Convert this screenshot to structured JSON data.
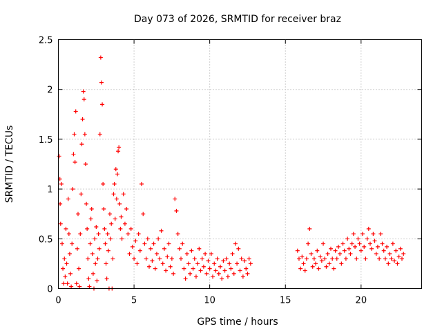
{
  "chart_data": {
    "type": "scatter",
    "title": "Day 073 of 2026, SRMTID for receiver braz",
    "xlabel": "GPS time / hours",
    "ylabel": "SRMTID / TECUs",
    "xlim": [
      0,
      24
    ],
    "ylim": [
      0,
      2.5
    ],
    "xticks": [
      0,
      5,
      10,
      15,
      20
    ],
    "xtick_labels": [
      "0",
      "5",
      "10",
      "15",
      "20"
    ],
    "yticks": [
      0,
      0.5,
      1,
      1.5,
      2,
      2.5
    ],
    "ytick_labels": [
      "0",
      "0.5",
      "1",
      "1.5",
      "2",
      "2.5"
    ],
    "grid": true,
    "marker": "+",
    "series": [
      {
        "name": "SRMTID",
        "color": "#ff0000",
        "points": [
          [
            0.05,
            1.33
          ],
          [
            0.1,
            1.1
          ],
          [
            0.12,
            0.85
          ],
          [
            0.15,
            0.65
          ],
          [
            0.2,
            1.05
          ],
          [
            0.25,
            0.45
          ],
          [
            0.3,
            0.2
          ],
          [
            0.35,
            0.05
          ],
          [
            0.4,
            0.3
          ],
          [
            0.45,
            0.12
          ],
          [
            0.5,
            0.6
          ],
          [
            0.55,
            0.25
          ],
          [
            0.6,
            0.05
          ],
          [
            0.65,
            0.9
          ],
          [
            0.7,
            0.55
          ],
          [
            0.75,
            0.35
          ],
          [
            0.8,
            0.15
          ],
          [
            0.85,
            0.02
          ],
          [
            0.9,
            0.45
          ],
          [
            0.95,
            1.0
          ],
          [
            1.0,
            1.35
          ],
          [
            1.05,
            1.55
          ],
          [
            1.1,
            1.27
          ],
          [
            1.15,
            1.78
          ],
          [
            1.2,
            0.05
          ],
          [
            1.25,
            0.4
          ],
          [
            1.3,
            0.75
          ],
          [
            1.35,
            0.2
          ],
          [
            1.4,
            0.02
          ],
          [
            1.45,
            0.55
          ],
          [
            1.5,
            0.95
          ],
          [
            1.55,
            1.45
          ],
          [
            1.6,
            1.7
          ],
          [
            1.65,
            1.98
          ],
          [
            1.7,
            1.9
          ],
          [
            1.75,
            1.55
          ],
          [
            1.8,
            1.25
          ],
          [
            1.85,
            0.85
          ],
          [
            1.9,
            0.6
          ],
          [
            1.95,
            0.3
          ],
          [
            2.0,
            0.1
          ],
          [
            2.05,
            0.02
          ],
          [
            2.1,
            0.45
          ],
          [
            2.15,
            0.7
          ],
          [
            2.2,
            0.8
          ],
          [
            2.25,
            0.35
          ],
          [
            2.3,
            0.15
          ],
          [
            2.35,
            0.0
          ],
          [
            2.4,
            0.5
          ],
          [
            2.45,
            0.25
          ],
          [
            2.5,
            0.62
          ],
          [
            2.55,
            0.08
          ],
          [
            2.6,
            0.3
          ],
          [
            2.65,
            0.55
          ],
          [
            2.7,
            0.4
          ],
          [
            2.75,
            1.55
          ],
          [
            2.8,
            2.32
          ],
          [
            2.85,
            2.07
          ],
          [
            2.9,
            1.85
          ],
          [
            2.95,
            1.05
          ],
          [
            3.0,
            0.8
          ],
          [
            3.05,
            0.6
          ],
          [
            3.1,
            0.45
          ],
          [
            3.15,
            0.25
          ],
          [
            3.2,
            0.1
          ],
          [
            3.25,
            0.55
          ],
          [
            3.3,
            0.38
          ],
          [
            3.35,
            0.0
          ],
          [
            3.4,
            0.75
          ],
          [
            3.45,
            0.5
          ],
          [
            3.5,
            0.65
          ],
          [
            3.55,
            0.0
          ],
          [
            3.6,
            0.3
          ],
          [
            3.65,
            0.95
          ],
          [
            3.7,
            1.05
          ],
          [
            3.75,
            0.7
          ],
          [
            3.8,
            1.2
          ],
          [
            3.85,
            0.9
          ],
          [
            3.9,
            1.15
          ],
          [
            3.95,
            1.38
          ],
          [
            4.0,
            1.42
          ],
          [
            4.05,
            0.85
          ],
          [
            4.1,
            0.6
          ],
          [
            4.15,
            0.72
          ],
          [
            4.2,
            0.5
          ],
          [
            4.3,
            0.95
          ],
          [
            4.4,
            0.65
          ],
          [
            4.5,
            0.8
          ],
          [
            4.6,
            0.55
          ],
          [
            4.7,
            0.35
          ],
          [
            4.8,
            0.6
          ],
          [
            4.9,
            0.42
          ],
          [
            5.0,
            0.3
          ],
          [
            5.1,
            0.48
          ],
          [
            5.2,
            0.25
          ],
          [
            5.3,
            0.55
          ],
          [
            5.4,
            0.38
          ],
          [
            5.5,
            1.05
          ],
          [
            5.6,
            0.75
          ],
          [
            5.7,
            0.45
          ],
          [
            5.8,
            0.3
          ],
          [
            5.9,
            0.5
          ],
          [
            6.0,
            0.22
          ],
          [
            6.1,
            0.4
          ],
          [
            6.2,
            0.28
          ],
          [
            6.3,
            0.45
          ],
          [
            6.4,
            0.2
          ],
          [
            6.5,
            0.35
          ],
          [
            6.6,
            0.5
          ],
          [
            6.7,
            0.3
          ],
          [
            6.8,
            0.58
          ],
          [
            6.9,
            0.25
          ],
          [
            7.0,
            0.4
          ],
          [
            7.1,
            0.18
          ],
          [
            7.2,
            0.32
          ],
          [
            7.3,
            0.45
          ],
          [
            7.4,
            0.22
          ],
          [
            7.5,
            0.3
          ],
          [
            7.6,
            0.15
          ],
          [
            7.7,
            0.9
          ],
          [
            7.8,
            0.78
          ],
          [
            7.9,
            0.55
          ],
          [
            8.0,
            0.4
          ],
          [
            8.1,
            0.3
          ],
          [
            8.2,
            0.45
          ],
          [
            8.3,
            0.2
          ],
          [
            8.4,
            0.1
          ],
          [
            8.5,
            0.35
          ],
          [
            8.6,
            0.25
          ],
          [
            8.7,
            0.15
          ],
          [
            8.8,
            0.38
          ],
          [
            8.9,
            0.2
          ],
          [
            9.0,
            0.3
          ],
          [
            9.1,
            0.12
          ],
          [
            9.2,
            0.25
          ],
          [
            9.3,
            0.4
          ],
          [
            9.4,
            0.18
          ],
          [
            9.5,
            0.3
          ],
          [
            9.6,
            0.22
          ],
          [
            9.7,
            0.35
          ],
          [
            9.8,
            0.15
          ],
          [
            9.9,
            0.28
          ],
          [
            10.0,
            0.2
          ],
          [
            10.1,
            0.35
          ],
          [
            10.2,
            0.12
          ],
          [
            10.3,
            0.25
          ],
          [
            10.4,
            0.18
          ],
          [
            10.5,
            0.3
          ],
          [
            10.6,
            0.15
          ],
          [
            10.7,
            0.22
          ],
          [
            10.8,
            0.1
          ],
          [
            10.9,
            0.28
          ],
          [
            11.0,
            0.18
          ],
          [
            11.1,
            0.3
          ],
          [
            11.2,
            0.12
          ],
          [
            11.3,
            0.25
          ],
          [
            11.4,
            0.2
          ],
          [
            11.5,
            0.35
          ],
          [
            11.6,
            0.15
          ],
          [
            11.7,
            0.45
          ],
          [
            11.8,
            0.25
          ],
          [
            11.9,
            0.4
          ],
          [
            12.0,
            0.18
          ],
          [
            12.1,
            0.3
          ],
          [
            12.2,
            0.12
          ],
          [
            12.3,
            0.28
          ],
          [
            12.4,
            0.2
          ],
          [
            12.5,
            0.15
          ],
          [
            12.6,
            0.3
          ],
          [
            12.7,
            0.25
          ],
          [
            15.8,
            0.38
          ],
          [
            15.9,
            0.3
          ],
          [
            16.0,
            0.2
          ],
          [
            16.1,
            0.32
          ],
          [
            16.2,
            0.25
          ],
          [
            16.3,
            0.18
          ],
          [
            16.4,
            0.3
          ],
          [
            16.5,
            0.45
          ],
          [
            16.6,
            0.6
          ],
          [
            16.7,
            0.35
          ],
          [
            16.8,
            0.22
          ],
          [
            16.9,
            0.3
          ],
          [
            17.0,
            0.25
          ],
          [
            17.1,
            0.38
          ],
          [
            17.2,
            0.2
          ],
          [
            17.3,
            0.32
          ],
          [
            17.4,
            0.28
          ],
          [
            17.5,
            0.45
          ],
          [
            17.6,
            0.3
          ],
          [
            17.7,
            0.22
          ],
          [
            17.8,
            0.35
          ],
          [
            17.9,
            0.25
          ],
          [
            18.0,
            0.4
          ],
          [
            18.1,
            0.3
          ],
          [
            18.2,
            0.2
          ],
          [
            18.3,
            0.38
          ],
          [
            18.4,
            0.3
          ],
          [
            18.5,
            0.42
          ],
          [
            18.6,
            0.35
          ],
          [
            18.7,
            0.25
          ],
          [
            18.8,
            0.45
          ],
          [
            18.9,
            0.38
          ],
          [
            19.0,
            0.3
          ],
          [
            19.1,
            0.5
          ],
          [
            19.2,
            0.4
          ],
          [
            19.3,
            0.35
          ],
          [
            19.4,
            0.45
          ],
          [
            19.5,
            0.55
          ],
          [
            19.6,
            0.42
          ],
          [
            19.7,
            0.3
          ],
          [
            19.8,
            0.5
          ],
          [
            19.9,
            0.45
          ],
          [
            20.0,
            0.38
          ],
          [
            20.1,
            0.55
          ],
          [
            20.2,
            0.42
          ],
          [
            20.3,
            0.3
          ],
          [
            20.4,
            0.5
          ],
          [
            20.5,
            0.6
          ],
          [
            20.6,
            0.45
          ],
          [
            20.7,
            0.4
          ],
          [
            20.8,
            0.55
          ],
          [
            20.9,
            0.48
          ],
          [
            21.0,
            0.35
          ],
          [
            21.1,
            0.42
          ],
          [
            21.2,
            0.3
          ],
          [
            21.3,
            0.55
          ],
          [
            21.4,
            0.45
          ],
          [
            21.5,
            0.38
          ],
          [
            21.6,
            0.3
          ],
          [
            21.7,
            0.42
          ],
          [
            21.8,
            0.25
          ],
          [
            21.9,
            0.35
          ],
          [
            22.0,
            0.3
          ],
          [
            22.1,
            0.45
          ],
          [
            22.2,
            0.28
          ],
          [
            22.3,
            0.38
          ],
          [
            22.4,
            0.25
          ],
          [
            22.5,
            0.32
          ],
          [
            22.6,
            0.4
          ],
          [
            22.7,
            0.3
          ],
          [
            22.8,
            0.35
          ]
        ]
      }
    ]
  }
}
